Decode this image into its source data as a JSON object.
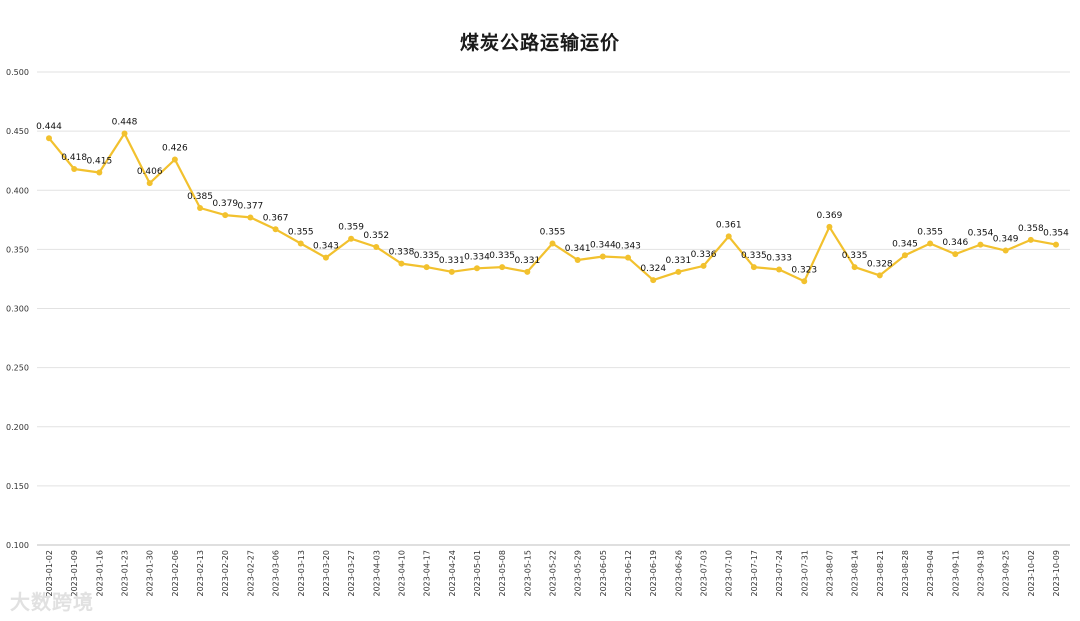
{
  "chart_data": {
    "type": "line",
    "title": "煤炭公路运输运价",
    "xlabel": "",
    "ylabel": "",
    "ylim": [
      0.1,
      0.5
    ],
    "yticks": [
      "0.100",
      "0.150",
      "0.200",
      "0.250",
      "0.300",
      "0.350",
      "0.400",
      "0.450",
      "0.500"
    ],
    "grid": true,
    "legend": "none",
    "line_color": "#F2C12E",
    "categories": [
      "2023-01-02",
      "2023-01-09",
      "2023-01-16",
      "2023-01-23",
      "2023-01-30",
      "2023-02-06",
      "2023-02-13",
      "2023-02-20",
      "2023-02-27",
      "2023-03-06",
      "2023-03-13",
      "2023-03-20",
      "2023-03-27",
      "2023-04-03",
      "2023-04-10",
      "2023-04-17",
      "2023-04-24",
      "2023-05-01",
      "2023-05-08",
      "2023-05-15",
      "2023-05-22",
      "2023-05-29",
      "2023-06-05",
      "2023-06-12",
      "2023-06-19",
      "2023-06-26",
      "2023-07-03",
      "2023-07-10",
      "2023-07-17",
      "2023-07-24",
      "2023-07-31",
      "2023-08-07",
      "2023-08-14",
      "2023-08-21",
      "2023-08-28",
      "2023-09-04",
      "2023-09-11",
      "2023-09-18",
      "2023-09-25",
      "2023-10-02",
      "2023-10-09"
    ],
    "values": [
      0.444,
      0.418,
      0.415,
      0.448,
      0.406,
      0.426,
      0.385,
      0.379,
      0.377,
      0.367,
      0.355,
      0.343,
      0.359,
      0.352,
      0.338,
      0.335,
      0.331,
      0.334,
      0.335,
      0.331,
      0.355,
      0.341,
      0.344,
      0.343,
      0.324,
      0.331,
      0.336,
      0.361,
      0.335,
      0.333,
      0.323,
      0.369,
      0.335,
      0.328,
      0.345,
      0.355,
      0.346,
      0.354,
      0.349,
      0.358,
      0.354
    ],
    "value_labels": [
      "0.444",
      "0.418",
      "0.415",
      "0.448",
      "0.406",
      "0.426",
      "0.385",
      "0.379",
      "0.377",
      "0.367",
      "0.355",
      "0.343",
      "0.359",
      "0.352",
      "0.338",
      "0.335",
      "0.331",
      "0.334",
      "0.335",
      "0.331",
      "0.355",
      "0.341",
      "0.344",
      "0.343",
      "0.324",
      "0.331",
      "0.336",
      "0.361",
      "0.335",
      "0.333",
      "0.323",
      "0.369",
      "0.335",
      "0.328",
      "0.345",
      "0.355",
      "0.346",
      "0.354",
      "0.349",
      "0.358",
      "0.354"
    ]
  },
  "watermark": "大数跨境"
}
